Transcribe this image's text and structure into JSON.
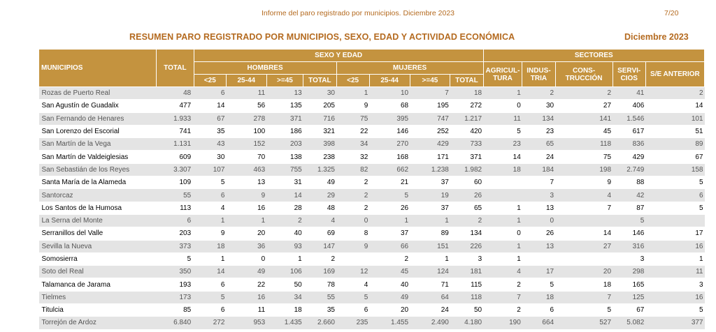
{
  "header": {
    "report_title": "Informe del paro registrado por municipios. Diciembre 2023",
    "page": "7/20",
    "main_title": "RESUMEN PARO REGISTRADO POR MUNICIPIOS, SEXO, EDAD Y ACTIVIDAD ECONÓMICA",
    "period": "Diciembre 2023"
  },
  "table": {
    "municipios": "MUNICIPIOS",
    "total": "TOTAL",
    "sexo_edad": "SEXO Y EDAD",
    "sectores": "SECTORES",
    "hombres": "HOMBRES",
    "mujeres": "MUJERES",
    "age_lt25": "<25",
    "age_25_44": "25-44",
    "age_ge45": ">=45",
    "total_sub": "TOTAL",
    "agricultura_1": "AGRICUL-",
    "agricultura_2": "TURA",
    "industria_1": "INDUS-",
    "industria_2": "TRIA",
    "construccion_1": "CONS-",
    "construccion_2": "TRUCCIÓN",
    "servicios_1": "SERVI-",
    "servicios_2": "CIOS",
    "se_anterior": "S/E ANTERIOR",
    "rows": [
      [
        "Rozas de Puerto Real",
        "48",
        "6",
        "11",
        "13",
        "30",
        "1",
        "10",
        "7",
        "18",
        "1",
        "2",
        "2",
        "41",
        "2"
      ],
      [
        "San Agustín de Guadalix",
        "477",
        "14",
        "56",
        "135",
        "205",
        "9",
        "68",
        "195",
        "272",
        "0",
        "30",
        "27",
        "406",
        "14"
      ],
      [
        "San Fernando de Henares",
        "1.933",
        "67",
        "278",
        "371",
        "716",
        "75",
        "395",
        "747",
        "1.217",
        "11",
        "134",
        "141",
        "1.546",
        "101"
      ],
      [
        "San Lorenzo del Escorial",
        "741",
        "35",
        "100",
        "186",
        "321",
        "22",
        "146",
        "252",
        "420",
        "5",
        "23",
        "45",
        "617",
        "51"
      ],
      [
        "San Martín de la Vega",
        "1.131",
        "43",
        "152",
        "203",
        "398",
        "34",
        "270",
        "429",
        "733",
        "23",
        "65",
        "118",
        "836",
        "89"
      ],
      [
        "San Martín de Valdeiglesias",
        "609",
        "30",
        "70",
        "138",
        "238",
        "32",
        "168",
        "171",
        "371",
        "14",
        "24",
        "75",
        "429",
        "67"
      ],
      [
        "San Sebastián de los Reyes",
        "3.307",
        "107",
        "463",
        "755",
        "1.325",
        "82",
        "662",
        "1.238",
        "1.982",
        "18",
        "184",
        "198",
        "2.749",
        "158"
      ],
      [
        "Santa María de la Alameda",
        "109",
        "5",
        "13",
        "31",
        "49",
        "2",
        "21",
        "37",
        "60",
        "",
        "7",
        "9",
        "88",
        "5"
      ],
      [
        "Santorcaz",
        "55",
        "6",
        "9",
        "14",
        "29",
        "2",
        "5",
        "19",
        "26",
        "",
        "3",
        "4",
        "42",
        "6"
      ],
      [
        "Los Santos de la Humosa",
        "113",
        "4",
        "16",
        "28",
        "48",
        "2",
        "26",
        "37",
        "65",
        "1",
        "13",
        "7",
        "87",
        "5"
      ],
      [
        "La Serna del Monte",
        "6",
        "1",
        "1",
        "2",
        "4",
        "0",
        "1",
        "1",
        "2",
        "1",
        "0",
        "",
        "5",
        ""
      ],
      [
        "Serranillos del Valle",
        "203",
        "9",
        "20",
        "40",
        "69",
        "8",
        "37",
        "89",
        "134",
        "0",
        "26",
        "14",
        "146",
        "17"
      ],
      [
        "Sevilla la Nueva",
        "373",
        "18",
        "36",
        "93",
        "147",
        "9",
        "66",
        "151",
        "226",
        "1",
        "13",
        "27",
        "316",
        "16"
      ],
      [
        "Somosierra",
        "5",
        "1",
        "0",
        "1",
        "2",
        "",
        "2",
        "1",
        "3",
        "1",
        "",
        "",
        "3",
        "1"
      ],
      [
        "Soto del Real",
        "350",
        "14",
        "49",
        "106",
        "169",
        "12",
        "45",
        "124",
        "181",
        "4",
        "17",
        "20",
        "298",
        "11"
      ],
      [
        "Talamanca de Jarama",
        "193",
        "6",
        "22",
        "50",
        "78",
        "4",
        "40",
        "71",
        "115",
        "2",
        "5",
        "18",
        "165",
        "3"
      ],
      [
        "Tielmes",
        "173",
        "5",
        "16",
        "34",
        "55",
        "5",
        "49",
        "64",
        "118",
        "7",
        "18",
        "7",
        "125",
        "16"
      ],
      [
        "Titulcia",
        "85",
        "6",
        "11",
        "18",
        "35",
        "6",
        "20",
        "24",
        "50",
        "2",
        "6",
        "5",
        "67",
        "5"
      ],
      [
        "Torrejón de Ardoz",
        "6.840",
        "272",
        "953",
        "1.435",
        "2.660",
        "235",
        "1.455",
        "2.490",
        "4.180",
        "190",
        "664",
        "527",
        "5.082",
        "377"
      ]
    ]
  }
}
